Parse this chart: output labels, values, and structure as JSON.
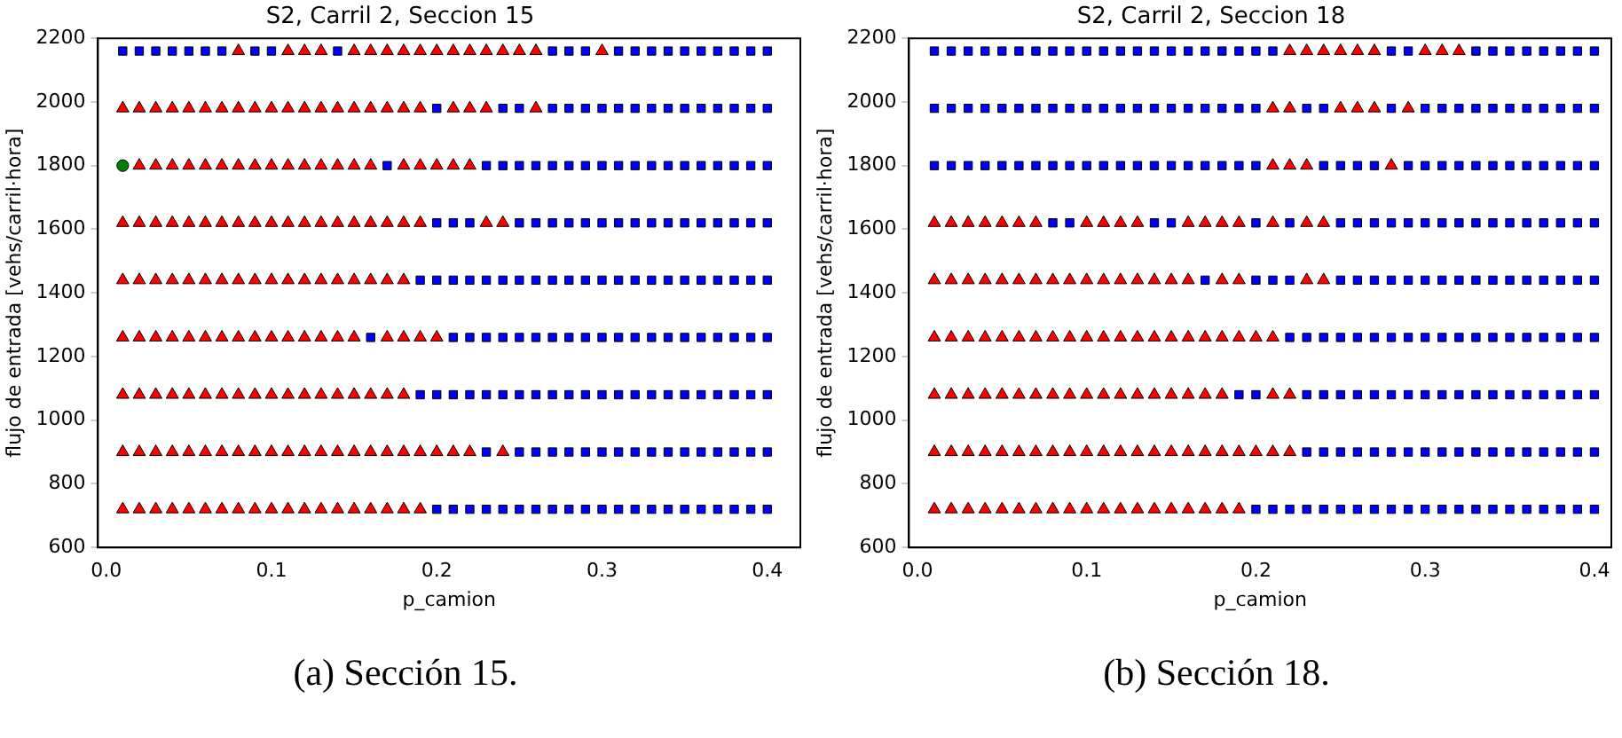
{
  "chart_data": [
    {
      "type": "scatter",
      "title": "S2, Carril 2, Seccion 15",
      "xlabel": "p_camion",
      "ylabel": "flujo de entrada [vehs/carril·hora]",
      "annotations": [
        "(a) Sección 15."
      ],
      "xlim": [
        -0.005,
        0.42
      ],
      "xticks": [
        {
          "value": 0,
          "label": "0.0"
        },
        {
          "value": 0.1,
          "label": "0.1"
        },
        {
          "value": 0.2,
          "label": "0.2"
        },
        {
          "value": 0.3,
          "label": "0.3"
        },
        {
          "value": 0.4,
          "label": "0.4"
        }
      ],
      "ylim": [
        600,
        2200
      ],
      "yticks": [
        600,
        800,
        1000,
        1200,
        1400,
        1600,
        1800,
        2000,
        2200
      ],
      "grid": false,
      "legend": false,
      "series": [
        {
          "color": "#ff0000",
          "marker": "triangle",
          "x": [
            0.08,
            0.11,
            0.12,
            0.13,
            0.15,
            0.16,
            0.17,
            0.18,
            0.19,
            0.2,
            0.21,
            0.22,
            0.23,
            0.24,
            0.25,
            0.26,
            0.3,
            0.01,
            0.02,
            0.03,
            0.04,
            0.05,
            0.06,
            0.07,
            0.08,
            0.09,
            0.1,
            0.11,
            0.12,
            0.13,
            0.14,
            0.15,
            0.16,
            0.17,
            0.18,
            0.19,
            0.21,
            0.22,
            0.23,
            0.26,
            0.02,
            0.03,
            0.04,
            0.05,
            0.06,
            0.07,
            0.08,
            0.09,
            0.1,
            0.11,
            0.12,
            0.13,
            0.14,
            0.15,
            0.16,
            0.18,
            0.19,
            0.2,
            0.21,
            0.22,
            0.01,
            0.02,
            0.03,
            0.04,
            0.05,
            0.06,
            0.07,
            0.08,
            0.09,
            0.1,
            0.11,
            0.12,
            0.13,
            0.14,
            0.15,
            0.16,
            0.17,
            0.18,
            0.19,
            0.23,
            0.24,
            0.01,
            0.02,
            0.03,
            0.04,
            0.05,
            0.06,
            0.07,
            0.08,
            0.09,
            0.1,
            0.11,
            0.12,
            0.13,
            0.14,
            0.15,
            0.16,
            0.17,
            0.18,
            0.01,
            0.02,
            0.03,
            0.04,
            0.05,
            0.06,
            0.07,
            0.08,
            0.09,
            0.1,
            0.11,
            0.12,
            0.13,
            0.14,
            0.15,
            0.17,
            0.18,
            0.19,
            0.2,
            0.01,
            0.02,
            0.03,
            0.04,
            0.05,
            0.06,
            0.07,
            0.08,
            0.09,
            0.1,
            0.11,
            0.12,
            0.13,
            0.14,
            0.15,
            0.16,
            0.17,
            0.18,
            0.01,
            0.02,
            0.03,
            0.04,
            0.05,
            0.06,
            0.07,
            0.08,
            0.09,
            0.1,
            0.11,
            0.12,
            0.13,
            0.14,
            0.15,
            0.16,
            0.17,
            0.18,
            0.19,
            0.2,
            0.21,
            0.22,
            0.24,
            0.01,
            0.02,
            0.03,
            0.04,
            0.05,
            0.06,
            0.07,
            0.08,
            0.09,
            0.1,
            0.11,
            0.12,
            0.13,
            0.14,
            0.15,
            0.16,
            0.17,
            0.18,
            0.19
          ],
          "values": [
            2160,
            2160,
            2160,
            2160,
            2160,
            2160,
            2160,
            2160,
            2160,
            2160,
            2160,
            2160,
            2160,
            2160,
            2160,
            2160,
            2160,
            1980,
            1980,
            1980,
            1980,
            1980,
            1980,
            1980,
            1980,
            1980,
            1980,
            1980,
            1980,
            1980,
            1980,
            1980,
            1980,
            1980,
            1980,
            1980,
            1980,
            1980,
            1980,
            1980,
            1800,
            1800,
            1800,
            1800,
            1800,
            1800,
            1800,
            1800,
            1800,
            1800,
            1800,
            1800,
            1800,
            1800,
            1800,
            1800,
            1800,
            1800,
            1800,
            1800,
            1620,
            1620,
            1620,
            1620,
            1620,
            1620,
            1620,
            1620,
            1620,
            1620,
            1620,
            1620,
            1620,
            1620,
            1620,
            1620,
            1620,
            1620,
            1620,
            1620,
            1620,
            1440,
            1440,
            1440,
            1440,
            1440,
            1440,
            1440,
            1440,
            1440,
            1440,
            1440,
            1440,
            1440,
            1440,
            1440,
            1440,
            1440,
            1440,
            1260,
            1260,
            1260,
            1260,
            1260,
            1260,
            1260,
            1260,
            1260,
            1260,
            1260,
            1260,
            1260,
            1260,
            1260,
            1260,
            1260,
            1260,
            1260,
            1080,
            1080,
            1080,
            1080,
            1080,
            1080,
            1080,
            1080,
            1080,
            1080,
            1080,
            1080,
            1080,
            1080,
            1080,
            1080,
            1080,
            1080,
            900,
            900,
            900,
            900,
            900,
            900,
            900,
            900,
            900,
            900,
            900,
            900,
            900,
            900,
            900,
            900,
            900,
            900,
            900,
            900,
            900,
            900,
            900,
            720,
            720,
            720,
            720,
            720,
            720,
            720,
            720,
            720,
            720,
            720,
            720,
            720,
            720,
            720,
            720,
            720,
            720,
            720
          ]
        },
        {
          "color": "#0000ff",
          "marker": "square",
          "x": [
            0.01,
            0.02,
            0.03,
            0.04,
            0.05,
            0.06,
            0.07,
            0.09,
            0.1,
            0.14,
            0.27,
            0.28,
            0.29,
            0.31,
            0.32,
            0.33,
            0.34,
            0.35,
            0.36,
            0.37,
            0.38,
            0.39,
            0.4,
            0.2,
            0.24,
            0.25,
            0.27,
            0.28,
            0.29,
            0.3,
            0.31,
            0.32,
            0.33,
            0.34,
            0.35,
            0.36,
            0.37,
            0.38,
            0.39,
            0.4,
            0.17,
            0.23,
            0.24,
            0.25,
            0.26,
            0.27,
            0.28,
            0.29,
            0.3,
            0.31,
            0.32,
            0.33,
            0.34,
            0.35,
            0.36,
            0.37,
            0.38,
            0.39,
            0.4,
            0.2,
            0.21,
            0.22,
            0.25,
            0.26,
            0.27,
            0.28,
            0.29,
            0.3,
            0.31,
            0.32,
            0.33,
            0.34,
            0.35,
            0.36,
            0.37,
            0.38,
            0.39,
            0.4,
            0.19,
            0.2,
            0.21,
            0.22,
            0.23,
            0.24,
            0.25,
            0.26,
            0.27,
            0.28,
            0.29,
            0.3,
            0.31,
            0.32,
            0.33,
            0.34,
            0.35,
            0.36,
            0.37,
            0.38,
            0.39,
            0.4,
            0.16,
            0.21,
            0.22,
            0.23,
            0.24,
            0.25,
            0.26,
            0.27,
            0.28,
            0.29,
            0.3,
            0.31,
            0.32,
            0.33,
            0.34,
            0.35,
            0.36,
            0.37,
            0.38,
            0.39,
            0.4,
            0.19,
            0.2,
            0.21,
            0.22,
            0.23,
            0.24,
            0.25,
            0.26,
            0.27,
            0.28,
            0.29,
            0.3,
            0.31,
            0.32,
            0.33,
            0.34,
            0.35,
            0.36,
            0.37,
            0.38,
            0.39,
            0.4,
            0.23,
            0.25,
            0.26,
            0.27,
            0.28,
            0.29,
            0.3,
            0.31,
            0.32,
            0.33,
            0.34,
            0.35,
            0.36,
            0.37,
            0.38,
            0.39,
            0.4,
            0.2,
            0.21,
            0.22,
            0.23,
            0.24,
            0.25,
            0.26,
            0.27,
            0.28,
            0.29,
            0.3,
            0.31,
            0.32,
            0.33,
            0.34,
            0.35,
            0.36,
            0.37,
            0.38,
            0.39,
            0.4
          ],
          "values": [
            2160,
            2160,
            2160,
            2160,
            2160,
            2160,
            2160,
            2160,
            2160,
            2160,
            2160,
            2160,
            2160,
            2160,
            2160,
            2160,
            2160,
            2160,
            2160,
            2160,
            2160,
            2160,
            2160,
            1980,
            1980,
            1980,
            1980,
            1980,
            1980,
            1980,
            1980,
            1980,
            1980,
            1980,
            1980,
            1980,
            1980,
            1980,
            1980,
            1980,
            1800,
            1800,
            1800,
            1800,
            1800,
            1800,
            1800,
            1800,
            1800,
            1800,
            1800,
            1800,
            1800,
            1800,
            1800,
            1800,
            1800,
            1800,
            1800,
            1620,
            1620,
            1620,
            1620,
            1620,
            1620,
            1620,
            1620,
            1620,
            1620,
            1620,
            1620,
            1620,
            1620,
            1620,
            1620,
            1620,
            1620,
            1620,
            1440,
            1440,
            1440,
            1440,
            1440,
            1440,
            1440,
            1440,
            1440,
            1440,
            1440,
            1440,
            1440,
            1440,
            1440,
            1440,
            1440,
            1440,
            1440,
            1440,
            1440,
            1440,
            1260,
            1260,
            1260,
            1260,
            1260,
            1260,
            1260,
            1260,
            1260,
            1260,
            1260,
            1260,
            1260,
            1260,
            1260,
            1260,
            1260,
            1260,
            1260,
            1260,
            1260,
            1080,
            1080,
            1080,
            1080,
            1080,
            1080,
            1080,
            1080,
            1080,
            1080,
            1080,
            1080,
            1080,
            1080,
            1080,
            1080,
            1080,
            1080,
            1080,
            1080,
            1080,
            1080,
            900,
            900,
            900,
            900,
            900,
            900,
            900,
            900,
            900,
            900,
            900,
            900,
            900,
            900,
            900,
            900,
            900,
            720,
            720,
            720,
            720,
            720,
            720,
            720,
            720,
            720,
            720,
            720,
            720,
            720,
            720,
            720,
            720,
            720,
            720,
            720,
            720,
            720
          ]
        },
        {
          "color": "#007f00",
          "marker": "circle",
          "x": [
            0.01
          ],
          "values": [
            1800
          ]
        }
      ]
    },
    {
      "type": "scatter",
      "title": "S2, Carril 2, Seccion 18",
      "xlabel": "p_camion",
      "ylabel": "flujo de entrada [vehs/carril·hora]",
      "annotations": [
        "(b) Sección 18."
      ],
      "xlim": [
        -0.005,
        0.41
      ],
      "xticks": [
        {
          "value": 0,
          "label": "0.0"
        },
        {
          "value": 0.1,
          "label": "0.1"
        },
        {
          "value": 0.2,
          "label": "0.2"
        },
        {
          "value": 0.3,
          "label": "0.3"
        },
        {
          "value": 0.4,
          "label": "0.4"
        }
      ],
      "ylim": [
        600,
        2200
      ],
      "yticks": [
        600,
        800,
        1000,
        1200,
        1400,
        1600,
        1800,
        2000,
        2200
      ],
      "grid": false,
      "legend": false,
      "series": [
        {
          "color": "#ff0000",
          "marker": "triangle",
          "x": [
            0.22,
            0.23,
            0.24,
            0.25,
            0.26,
            0.27,
            0.3,
            0.31,
            0.32,
            0.21,
            0.22,
            0.25,
            0.26,
            0.27,
            0.29,
            0.21,
            0.22,
            0.23,
            0.28,
            0.01,
            0.02,
            0.03,
            0.04,
            0.05,
            0.06,
            0.07,
            0.1,
            0.11,
            0.12,
            0.13,
            0.16,
            0.17,
            0.18,
            0.19,
            0.21,
            0.23,
            0.24,
            0.01,
            0.02,
            0.03,
            0.04,
            0.05,
            0.06,
            0.07,
            0.08,
            0.09,
            0.1,
            0.11,
            0.12,
            0.13,
            0.14,
            0.15,
            0.16,
            0.18,
            0.19,
            0.23,
            0.24,
            0.01,
            0.02,
            0.03,
            0.04,
            0.05,
            0.06,
            0.07,
            0.08,
            0.09,
            0.1,
            0.11,
            0.12,
            0.13,
            0.14,
            0.15,
            0.16,
            0.17,
            0.18,
            0.19,
            0.2,
            0.21,
            0.01,
            0.02,
            0.03,
            0.04,
            0.05,
            0.06,
            0.07,
            0.08,
            0.09,
            0.1,
            0.11,
            0.12,
            0.13,
            0.14,
            0.15,
            0.16,
            0.17,
            0.18,
            0.21,
            0.22,
            0.01,
            0.02,
            0.03,
            0.04,
            0.05,
            0.06,
            0.07,
            0.08,
            0.09,
            0.1,
            0.11,
            0.12,
            0.13,
            0.14,
            0.15,
            0.16,
            0.17,
            0.18,
            0.19,
            0.2,
            0.21,
            0.22,
            0.01,
            0.02,
            0.03,
            0.04,
            0.05,
            0.06,
            0.07,
            0.08,
            0.09,
            0.1,
            0.11,
            0.12,
            0.13,
            0.14,
            0.15,
            0.16,
            0.17,
            0.18,
            0.19
          ],
          "values": [
            2160,
            2160,
            2160,
            2160,
            2160,
            2160,
            2160,
            2160,
            2160,
            1980,
            1980,
            1980,
            1980,
            1980,
            1980,
            1800,
            1800,
            1800,
            1800,
            1620,
            1620,
            1620,
            1620,
            1620,
            1620,
            1620,
            1620,
            1620,
            1620,
            1620,
            1620,
            1620,
            1620,
            1620,
            1620,
            1620,
            1620,
            1440,
            1440,
            1440,
            1440,
            1440,
            1440,
            1440,
            1440,
            1440,
            1440,
            1440,
            1440,
            1440,
            1440,
            1440,
            1440,
            1440,
            1440,
            1440,
            1440,
            1260,
            1260,
            1260,
            1260,
            1260,
            1260,
            1260,
            1260,
            1260,
            1260,
            1260,
            1260,
            1260,
            1260,
            1260,
            1260,
            1260,
            1260,
            1260,
            1260,
            1260,
            1080,
            1080,
            1080,
            1080,
            1080,
            1080,
            1080,
            1080,
            1080,
            1080,
            1080,
            1080,
            1080,
            1080,
            1080,
            1080,
            1080,
            1080,
            1080,
            1080,
            900,
            900,
            900,
            900,
            900,
            900,
            900,
            900,
            900,
            900,
            900,
            900,
            900,
            900,
            900,
            900,
            900,
            900,
            900,
            900,
            900,
            900,
            720,
            720,
            720,
            720,
            720,
            720,
            720,
            720,
            720,
            720,
            720,
            720,
            720,
            720,
            720,
            720,
            720,
            720,
            720
          ]
        },
        {
          "color": "#0000ff",
          "marker": "square",
          "x": [
            0.01,
            0.02,
            0.03,
            0.04,
            0.05,
            0.06,
            0.07,
            0.08,
            0.09,
            0.1,
            0.11,
            0.12,
            0.13,
            0.14,
            0.15,
            0.16,
            0.17,
            0.18,
            0.19,
            0.2,
            0.21,
            0.28,
            0.29,
            0.33,
            0.34,
            0.35,
            0.36,
            0.37,
            0.38,
            0.39,
            0.4,
            0.01,
            0.02,
            0.03,
            0.04,
            0.05,
            0.06,
            0.07,
            0.08,
            0.09,
            0.1,
            0.11,
            0.12,
            0.13,
            0.14,
            0.15,
            0.16,
            0.17,
            0.18,
            0.19,
            0.2,
            0.23,
            0.24,
            0.28,
            0.3,
            0.31,
            0.32,
            0.33,
            0.34,
            0.35,
            0.36,
            0.37,
            0.38,
            0.39,
            0.4,
            0.01,
            0.02,
            0.03,
            0.04,
            0.05,
            0.06,
            0.07,
            0.08,
            0.09,
            0.1,
            0.11,
            0.12,
            0.13,
            0.14,
            0.15,
            0.16,
            0.17,
            0.18,
            0.19,
            0.2,
            0.24,
            0.25,
            0.26,
            0.27,
            0.29,
            0.3,
            0.31,
            0.32,
            0.33,
            0.34,
            0.35,
            0.36,
            0.37,
            0.38,
            0.39,
            0.4,
            0.08,
            0.09,
            0.14,
            0.15,
            0.2,
            0.22,
            0.25,
            0.26,
            0.27,
            0.28,
            0.29,
            0.3,
            0.31,
            0.32,
            0.33,
            0.34,
            0.35,
            0.36,
            0.37,
            0.38,
            0.39,
            0.4,
            0.17,
            0.2,
            0.21,
            0.22,
            0.25,
            0.26,
            0.27,
            0.28,
            0.29,
            0.3,
            0.31,
            0.32,
            0.33,
            0.34,
            0.35,
            0.36,
            0.37,
            0.38,
            0.39,
            0.4,
            0.22,
            0.23,
            0.24,
            0.25,
            0.26,
            0.27,
            0.28,
            0.29,
            0.3,
            0.31,
            0.32,
            0.33,
            0.34,
            0.35,
            0.36,
            0.37,
            0.38,
            0.39,
            0.4,
            0.19,
            0.2,
            0.23,
            0.24,
            0.25,
            0.26,
            0.27,
            0.28,
            0.29,
            0.3,
            0.31,
            0.32,
            0.33,
            0.34,
            0.35,
            0.36,
            0.37,
            0.38,
            0.39,
            0.4,
            0.23,
            0.24,
            0.25,
            0.26,
            0.27,
            0.28,
            0.29,
            0.3,
            0.31,
            0.32,
            0.33,
            0.34,
            0.35,
            0.36,
            0.37,
            0.38,
            0.39,
            0.4,
            0.2,
            0.21,
            0.22,
            0.23,
            0.24,
            0.25,
            0.26,
            0.27,
            0.28,
            0.29,
            0.3,
            0.31,
            0.32,
            0.33,
            0.34,
            0.35,
            0.36,
            0.37,
            0.38,
            0.39,
            0.4
          ],
          "values": [
            2160,
            2160,
            2160,
            2160,
            2160,
            2160,
            2160,
            2160,
            2160,
            2160,
            2160,
            2160,
            2160,
            2160,
            2160,
            2160,
            2160,
            2160,
            2160,
            2160,
            2160,
            2160,
            2160,
            2160,
            2160,
            2160,
            2160,
            2160,
            2160,
            2160,
            2160,
            1980,
            1980,
            1980,
            1980,
            1980,
            1980,
            1980,
            1980,
            1980,
            1980,
            1980,
            1980,
            1980,
            1980,
            1980,
            1980,
            1980,
            1980,
            1980,
            1980,
            1980,
            1980,
            1980,
            1980,
            1980,
            1980,
            1980,
            1980,
            1980,
            1980,
            1980,
            1980,
            1980,
            1980,
            1800,
            1800,
            1800,
            1800,
            1800,
            1800,
            1800,
            1800,
            1800,
            1800,
            1800,
            1800,
            1800,
            1800,
            1800,
            1800,
            1800,
            1800,
            1800,
            1800,
            1800,
            1800,
            1800,
            1800,
            1800,
            1800,
            1800,
            1800,
            1800,
            1800,
            1800,
            1800,
            1800,
            1800,
            1800,
            1800,
            1620,
            1620,
            1620,
            1620,
            1620,
            1620,
            1620,
            1620,
            1620,
            1620,
            1620,
            1620,
            1620,
            1620,
            1620,
            1620,
            1620,
            1620,
            1620,
            1620,
            1620,
            1620,
            1440,
            1440,
            1440,
            1440,
            1440,
            1440,
            1440,
            1440,
            1440,
            1440,
            1440,
            1440,
            1440,
            1440,
            1440,
            1440,
            1440,
            1440,
            1440,
            1440,
            1260,
            1260,
            1260,
            1260,
            1260,
            1260,
            1260,
            1260,
            1260,
            1260,
            1260,
            1260,
            1260,
            1260,
            1260,
            1260,
            1260,
            1260,
            1260,
            1080,
            1080,
            1080,
            1080,
            1080,
            1080,
            1080,
            1080,
            1080,
            1080,
            1080,
            1080,
            1080,
            1080,
            1080,
            1080,
            1080,
            1080,
            1080,
            1080,
            900,
            900,
            900,
            900,
            900,
            900,
            900,
            900,
            900,
            900,
            900,
            900,
            900,
            900,
            900,
            900,
            900,
            900,
            720,
            720,
            720,
            720,
            720,
            720,
            720,
            720,
            720,
            720,
            720,
            720,
            720,
            720,
            720,
            720,
            720,
            720,
            720,
            720,
            720
          ]
        }
      ]
    }
  ]
}
